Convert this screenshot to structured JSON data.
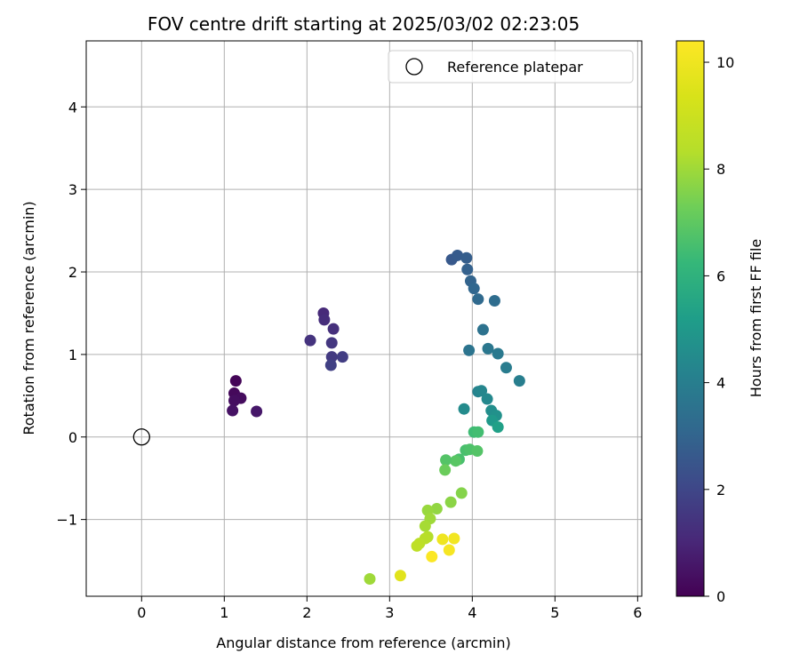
{
  "chart_data": {
    "type": "scatter",
    "title": "FOV centre drift starting at 2025/03/02 02:23:05",
    "xlabel": "Angular distance from reference (arcmin)",
    "ylabel": "Rotation from reference (arcmin)",
    "xlim": [
      -0.67,
      6.05
    ],
    "ylim": [
      -1.93,
      4.8
    ],
    "xticks": [
      0,
      1,
      2,
      3,
      4,
      5,
      6
    ],
    "yticks": [
      -1,
      0,
      1,
      2,
      3,
      4
    ],
    "xtick_labels": [
      "0",
      "1",
      "2",
      "3",
      "4",
      "5",
      "6"
    ],
    "ytick_labels": [
      "−1",
      "0",
      "1",
      "2",
      "3",
      "4"
    ],
    "grid": true,
    "legend": {
      "placement": "top-right",
      "entries": [
        {
          "label": "Reference platepar",
          "marker": "open-circle"
        }
      ]
    },
    "reference_point": {
      "x": 0,
      "y": 0
    },
    "colorbar": {
      "label": "Hours from first FF file",
      "colormap": "viridis",
      "range": [
        0,
        10.4
      ],
      "ticks": [
        0,
        2,
        4,
        6,
        8,
        10
      ],
      "tick_labels": [
        "0",
        "2",
        "4",
        "6",
        "8",
        "10"
      ]
    },
    "series": [
      {
        "points": [
          {
            "x": 1.14,
            "y": 0.68,
            "c": 0.1
          },
          {
            "x": 1.12,
            "y": 0.53,
            "c": 0.2
          },
          {
            "x": 1.2,
            "y": 0.47,
            "c": 0.3
          },
          {
            "x": 1.12,
            "y": 0.44,
            "c": 0.35
          },
          {
            "x": 1.1,
            "y": 0.32,
            "c": 0.45
          },
          {
            "x": 1.39,
            "y": 0.31,
            "c": 0.6
          },
          {
            "x": 2.2,
            "y": 1.5,
            "c": 1.1
          },
          {
            "x": 2.21,
            "y": 1.42,
            "c": 1.2
          },
          {
            "x": 2.32,
            "y": 1.31,
            "c": 1.3
          },
          {
            "x": 2.04,
            "y": 1.17,
            "c": 1.4
          },
          {
            "x": 2.3,
            "y": 1.14,
            "c": 1.5
          },
          {
            "x": 2.3,
            "y": 0.97,
            "c": 1.6
          },
          {
            "x": 2.43,
            "y": 0.97,
            "c": 1.7
          },
          {
            "x": 2.29,
            "y": 0.87,
            "c": 1.8
          },
          {
            "x": 3.75,
            "y": 2.15,
            "c": 2.6
          },
          {
            "x": 3.82,
            "y": 2.2,
            "c": 2.7
          },
          {
            "x": 3.93,
            "y": 2.17,
            "c": 2.8
          },
          {
            "x": 3.94,
            "y": 2.03,
            "c": 2.9
          },
          {
            "x": 3.98,
            "y": 1.89,
            "c": 3.0
          },
          {
            "x": 4.02,
            "y": 1.8,
            "c": 3.1
          },
          {
            "x": 4.07,
            "y": 1.67,
            "c": 3.2
          },
          {
            "x": 4.27,
            "y": 1.65,
            "c": 3.3
          },
          {
            "x": 4.13,
            "y": 1.3,
            "c": 3.5
          },
          {
            "x": 3.96,
            "y": 1.05,
            "c": 3.6
          },
          {
            "x": 4.19,
            "y": 1.07,
            "c": 3.7
          },
          {
            "x": 4.31,
            "y": 1.01,
            "c": 3.8
          },
          {
            "x": 4.41,
            "y": 0.84,
            "c": 3.9
          },
          {
            "x": 4.57,
            "y": 0.68,
            "c": 4.0
          },
          {
            "x": 4.07,
            "y": 0.55,
            "c": 4.2
          },
          {
            "x": 4.11,
            "y": 0.56,
            "c": 4.3
          },
          {
            "x": 4.18,
            "y": 0.46,
            "c": 4.4
          },
          {
            "x": 3.9,
            "y": 0.34,
            "c": 4.5
          },
          {
            "x": 4.23,
            "y": 0.32,
            "c": 4.6
          },
          {
            "x": 4.29,
            "y": 0.26,
            "c": 4.7
          },
          {
            "x": 4.24,
            "y": 0.2,
            "c": 5.0
          },
          {
            "x": 4.31,
            "y": 0.12,
            "c": 5.3
          },
          {
            "x": 4.02,
            "y": 0.06,
            "c": 6.4
          },
          {
            "x": 4.07,
            "y": 0.06,
            "c": 6.5
          },
          {
            "x": 3.92,
            "y": -0.16,
            "c": 6.6
          },
          {
            "x": 3.97,
            "y": -0.15,
            "c": 6.7
          },
          {
            "x": 4.06,
            "y": -0.17,
            "c": 6.8
          },
          {
            "x": 3.84,
            "y": -0.27,
            "c": 6.6
          },
          {
            "x": 3.8,
            "y": -0.29,
            "c": 6.9
          },
          {
            "x": 3.68,
            "y": -0.28,
            "c": 6.8
          },
          {
            "x": 3.67,
            "y": -0.4,
            "c": 7.2
          },
          {
            "x": 3.87,
            "y": -0.68,
            "c": 7.6
          },
          {
            "x": 3.74,
            "y": -0.79,
            "c": 7.7
          },
          {
            "x": 3.57,
            "y": -0.87,
            "c": 7.8
          },
          {
            "x": 3.46,
            "y": -0.89,
            "c": 7.9
          },
          {
            "x": 3.49,
            "y": -0.99,
            "c": 8.0
          },
          {
            "x": 3.43,
            "y": -1.08,
            "c": 8.1
          },
          {
            "x": 3.46,
            "y": -1.21,
            "c": 8.3
          },
          {
            "x": 3.43,
            "y": -1.23,
            "c": 8.4
          },
          {
            "x": 3.36,
            "y": -1.29,
            "c": 8.5
          },
          {
            "x": 3.33,
            "y": -1.32,
            "c": 8.6
          },
          {
            "x": 2.76,
            "y": -1.72,
            "c": 8.0
          },
          {
            "x": 3.13,
            "y": -1.68,
            "c": 9.6
          },
          {
            "x": 3.64,
            "y": -1.24,
            "c": 10.0
          },
          {
            "x": 3.78,
            "y": -1.23,
            "c": 10.1
          },
          {
            "x": 3.72,
            "y": -1.37,
            "c": 10.2
          },
          {
            "x": 3.51,
            "y": -1.45,
            "c": 10.35
          }
        ]
      }
    ]
  }
}
